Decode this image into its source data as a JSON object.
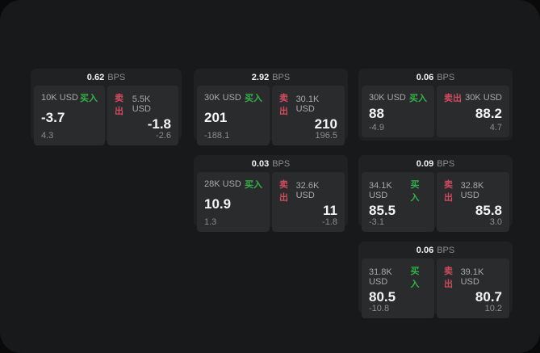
{
  "labels": {
    "bps_unit": "BPS",
    "buy": "买入",
    "sell": "卖出"
  },
  "colors": {
    "buy_green": "#32b14a",
    "sell_red": "#d14b5f",
    "panel_bg": "#18191a",
    "card_bg": "#202122",
    "subpanel_bg": "#2a2b2c"
  },
  "cards": [
    {
      "bps": "0.62",
      "buy": {
        "size": "10K USD",
        "price": "-3.7",
        "change": "4.3"
      },
      "sell": {
        "size": "5.5K USD",
        "price": "-1.8",
        "change": "-2.6"
      }
    },
    {
      "bps": "2.92",
      "buy": {
        "size": "30K USD",
        "price": "201",
        "change": "-188.1"
      },
      "sell": {
        "size": "30.1K USD",
        "price": "210",
        "change": "196.5"
      }
    },
    {
      "bps": "0.06",
      "buy": {
        "size": "30K USD",
        "price": "88",
        "change": "-4.9"
      },
      "sell": {
        "size": "30K USD",
        "price": "88.2",
        "change": "4.7"
      }
    },
    {
      "bps": "0.03",
      "buy": {
        "size": "28K USD",
        "price": "10.9",
        "change": "1.3"
      },
      "sell": {
        "size": "32.6K USD",
        "price": "11",
        "change": "-1.8"
      }
    },
    {
      "bps": "0.09",
      "buy": {
        "size": "34.1K USD",
        "price": "85.5",
        "change": "-3.1"
      },
      "sell": {
        "size": "32.8K USD",
        "price": "85.8",
        "change": "3.0"
      }
    },
    {
      "bps": "0.06",
      "buy": {
        "size": "31.8K USD",
        "price": "80.5",
        "change": "-10.8"
      },
      "sell": {
        "size": "39.1K USD",
        "price": "80.7",
        "change": "10.2"
      }
    }
  ]
}
